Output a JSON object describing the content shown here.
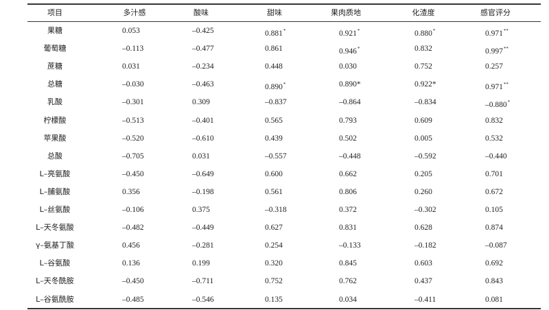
{
  "table": {
    "header": [
      "项目",
      "多汁感",
      "酸味",
      "甜味",
      "果肉质地",
      "化渣度",
      "感官评分"
    ],
    "rows": [
      [
        "果糖",
        {
          "value": "0.053"
        },
        {
          "value": "–0.425"
        },
        {
          "value": "0.881",
          "sig": "*"
        },
        {
          "value": "0.921",
          "sig": "*"
        },
        {
          "value": "0.880",
          "sig": "*"
        },
        {
          "value": "0.971",
          "sig": "**"
        }
      ],
      [
        "葡萄糖",
        {
          "value": "–0.113"
        },
        {
          "value": "–0.477"
        },
        {
          "value": "0.861"
        },
        {
          "value": "0.946",
          "sig": "*"
        },
        {
          "value": "0.832"
        },
        {
          "value": "0.997",
          "sig": "**"
        }
      ],
      [
        "蔗糖",
        {
          "value": "0.031"
        },
        {
          "value": "–0.234"
        },
        {
          "value": "0.448"
        },
        {
          "value": "0.030"
        },
        {
          "value": "0.752"
        },
        {
          "value": "0.257"
        }
      ],
      [
        "总糖",
        {
          "value": "–0.030"
        },
        {
          "value": "–0.463"
        },
        {
          "value": "0.890",
          "sig": "*"
        },
        {
          "value": "0.890*"
        },
        {
          "value": "0.922*"
        },
        {
          "value": "0.971",
          "sig": "**"
        }
      ],
      [
        "乳酸",
        {
          "value": "–0.301"
        },
        {
          "value": "0.309"
        },
        {
          "value": "–0.837"
        },
        {
          "value": "–0.864"
        },
        {
          "value": "–0.834"
        },
        {
          "value": "–0.880",
          "sig": "*"
        }
      ],
      [
        "柠檬酸",
        {
          "value": "–0.513"
        },
        {
          "value": "–0.401"
        },
        {
          "value": "0.565"
        },
        {
          "value": "0.793"
        },
        {
          "value": "0.609"
        },
        {
          "value": "0.832"
        }
      ],
      [
        "苹果酸",
        {
          "value": "–0.520"
        },
        {
          "value": "–0.610"
        },
        {
          "value": "0.439"
        },
        {
          "value": "0.502"
        },
        {
          "value": "0.005"
        },
        {
          "value": "0.532"
        }
      ],
      [
        "总酸",
        {
          "value": "–0.705"
        },
        {
          "value": "0.031"
        },
        {
          "value": "–0.557"
        },
        {
          "value": "–0.448"
        },
        {
          "value": "–0.592"
        },
        {
          "value": "–0.440"
        }
      ],
      [
        "L–亮氨酸",
        {
          "value": "–0.450"
        },
        {
          "value": "–0.649"
        },
        {
          "value": "0.600"
        },
        {
          "value": "0.662"
        },
        {
          "value": "0.205"
        },
        {
          "value": "0.701"
        }
      ],
      [
        "L–脯氨酸",
        {
          "value": "0.356"
        },
        {
          "value": "–0.198"
        },
        {
          "value": "0.561"
        },
        {
          "value": "0.806"
        },
        {
          "value": "0.260"
        },
        {
          "value": "0.672"
        }
      ],
      [
        "L–丝氨酸",
        {
          "value": "–0.106"
        },
        {
          "value": "0.375"
        },
        {
          "value": "–0.318"
        },
        {
          "value": "0.372"
        },
        {
          "value": "–0.302"
        },
        {
          "value": "0.105"
        }
      ],
      [
        "L–天冬氨酸",
        {
          "value": "–0.482"
        },
        {
          "value": "–0.449"
        },
        {
          "value": "0.627"
        },
        {
          "value": "0.831"
        },
        {
          "value": "0.628"
        },
        {
          "value": "0.874"
        }
      ],
      [
        "γ–氨基丁酸",
        {
          "value": "0.456"
        },
        {
          "value": "–0.281"
        },
        {
          "value": "0.254"
        },
        {
          "value": "–0.133"
        },
        {
          "value": "–0.182"
        },
        {
          "value": "–0.087"
        }
      ],
      [
        "L–谷氨酸",
        {
          "value": "0.136"
        },
        {
          "value": "0.199"
        },
        {
          "value": "0.320"
        },
        {
          "value": "0.845"
        },
        {
          "value": "0.603"
        },
        {
          "value": "0.692"
        }
      ],
      [
        "L–天冬酰胺",
        {
          "value": "–0.450"
        },
        {
          "value": "–0.711"
        },
        {
          "value": "0.752"
        },
        {
          "value": "0.762"
        },
        {
          "value": "0.437"
        },
        {
          "value": "0.843"
        }
      ],
      [
        "L–谷氨酰胺",
        {
          "value": "–0.485"
        },
        {
          "value": "–0.546"
        },
        {
          "value": "0.135"
        },
        {
          "value": "0.034"
        },
        {
          "value": "–0.411"
        },
        {
          "value": "0.081"
        }
      ]
    ]
  }
}
